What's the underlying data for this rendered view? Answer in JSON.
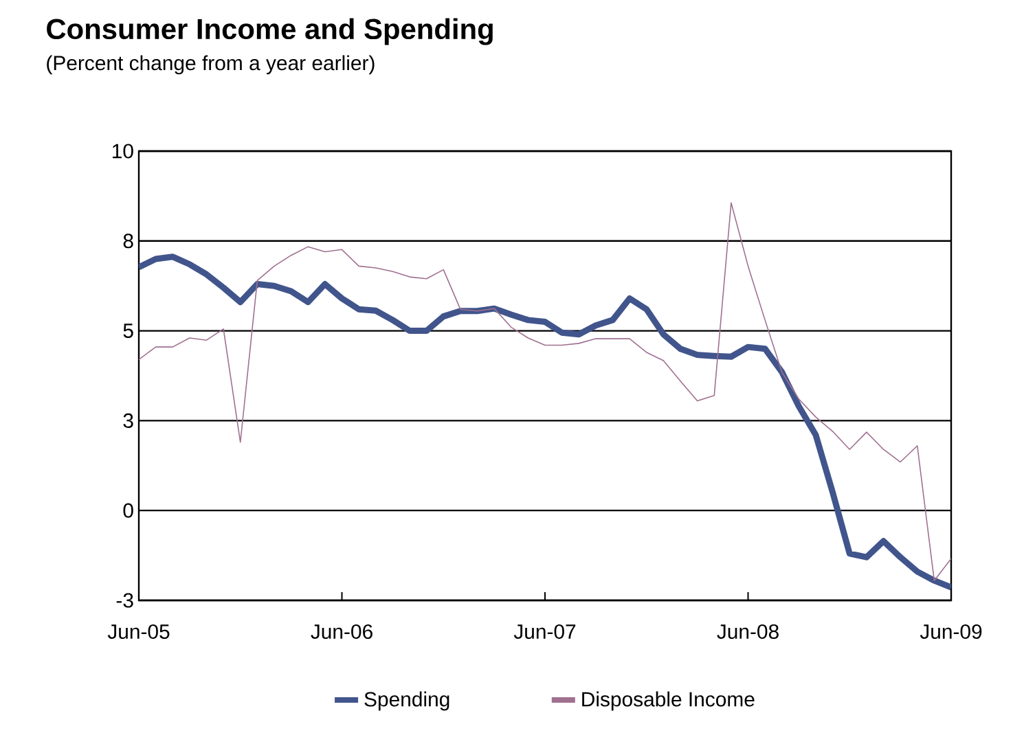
{
  "chart_data": {
    "type": "line",
    "title": "Consumer Income and Spending",
    "subtitle": "(Percent change from a year earlier)",
    "x": [
      "2005-06",
      "2005-07",
      "2005-08",
      "2005-09",
      "2005-10",
      "2005-11",
      "2005-12",
      "2006-01",
      "2006-02",
      "2006-03",
      "2006-04",
      "2006-05",
      "2006-06",
      "2006-07",
      "2006-08",
      "2006-09",
      "2006-10",
      "2006-11",
      "2006-12",
      "2007-01",
      "2007-02",
      "2007-03",
      "2007-04",
      "2007-05",
      "2007-06",
      "2007-07",
      "2007-08",
      "2007-09",
      "2007-10",
      "2007-11",
      "2007-12",
      "2008-01",
      "2008-02",
      "2008-03",
      "2008-04",
      "2008-05",
      "2008-06",
      "2008-07",
      "2008-08",
      "2008-09",
      "2008-10",
      "2008-11",
      "2008-12",
      "2009-01",
      "2009-02",
      "2009-03",
      "2009-04",
      "2009-05",
      "2009-06"
    ],
    "series": [
      {
        "name": "Spending",
        "color": "#41558c",
        "values": [
          6.77,
          7.0,
          7.06,
          6.85,
          6.57,
          6.2,
          5.8,
          6.3,
          6.25,
          6.1,
          5.8,
          6.3,
          5.9,
          5.6,
          5.56,
          5.3,
          5.0,
          5.0,
          5.4,
          5.55,
          5.55,
          5.62,
          5.45,
          5.3,
          5.25,
          4.95,
          4.9,
          5.15,
          5.3,
          5.9,
          5.6,
          4.9,
          4.5,
          4.33,
          4.3,
          4.28,
          4.55,
          4.5,
          3.85,
          2.9,
          2.1,
          0.5,
          -1.2,
          -1.3,
          -0.85,
          -1.3,
          -1.7,
          -1.95,
          -2.14
        ]
      },
      {
        "name": "Disposable Income",
        "color": "#a07090",
        "values": [
          4.2,
          4.55,
          4.55,
          4.8,
          4.74,
          5.05,
          1.9,
          6.4,
          6.8,
          7.1,
          7.34,
          7.2,
          7.26,
          6.8,
          6.75,
          6.65,
          6.5,
          6.45,
          6.7,
          5.6,
          5.55,
          5.62,
          5.1,
          4.8,
          4.6,
          4.6,
          4.65,
          4.78,
          4.78,
          4.78,
          4.4,
          4.17,
          3.6,
          3.05,
          3.2,
          8.56,
          6.8,
          5.3,
          3.85,
          3.1,
          2.6,
          2.2,
          1.7,
          2.18,
          1.7,
          1.35,
          1.8,
          -1.95,
          -1.34
        ]
      }
    ],
    "xlim": [
      "2005-06",
      "2009-06"
    ],
    "xticks": [
      {
        "value": "2005-06",
        "label": "Jun-05"
      },
      {
        "value": "2006-06",
        "label": "Jun-06"
      },
      {
        "value": "2007-06",
        "label": "Jun-07"
      },
      {
        "value": "2008-06",
        "label": "Jun-08"
      },
      {
        "value": "2009-06",
        "label": "Jun-09"
      }
    ],
    "ylim": [
      -2.5,
      10
    ],
    "yticks": [
      {
        "value": -2.5,
        "label": "-3"
      },
      0,
      {
        "value": 2.5,
        "label": "3"
      },
      5,
      {
        "value": 7.5,
        "label": "8"
      },
      10
    ],
    "grid": "y",
    "legend": "bottom",
    "marker": "none",
    "line_style": "solid"
  }
}
